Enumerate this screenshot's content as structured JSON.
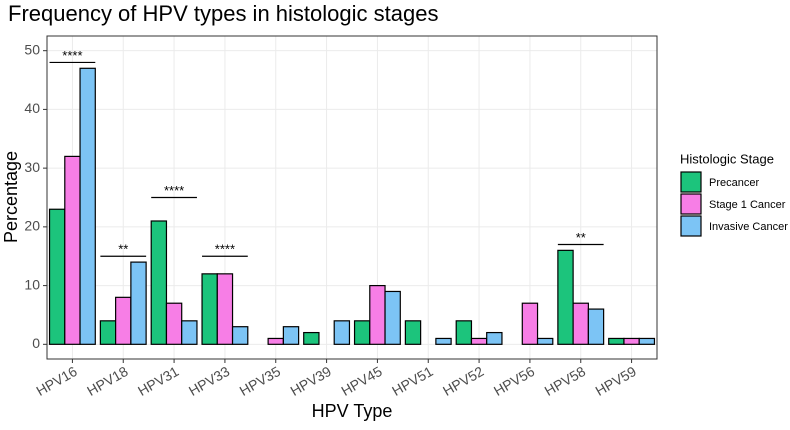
{
  "chart_data": {
    "type": "bar",
    "title": "Frequency of HPV types in histologic stages",
    "x_label": "HPV Type",
    "y_label": "Percentage",
    "categories": [
      "HPV16",
      "HPV18",
      "HPV31",
      "HPV33",
      "HPV35",
      "HPV39",
      "HPV45",
      "HPV51",
      "HPV52",
      "HPV56",
      "HPV58",
      "HPV59"
    ],
    "series": [
      {
        "name": "Precancer",
        "color": "#1cc47c",
        "values": [
          23,
          4,
          21,
          12,
          0,
          2,
          4,
          4,
          4,
          0,
          16,
          1
        ]
      },
      {
        "name": "Stage 1 Cancer",
        "color": "#f77ee6",
        "values": [
          32,
          8,
          7,
          12,
          1,
          0,
          10,
          0,
          1,
          7,
          7,
          1
        ]
      },
      {
        "name": "Invasive Cancer",
        "color": "#7cc4f5",
        "values": [
          47,
          14,
          4,
          3,
          3,
          4,
          9,
          1,
          2,
          1,
          6,
          1
        ]
      }
    ],
    "legend_title": "Histologic Stage",
    "legend_position": "right",
    "annotations": [
      {
        "category": "HPV16",
        "label": "****",
        "y": 48
      },
      {
        "category": "HPV18",
        "label": "**",
        "y": 15
      },
      {
        "category": "HPV31",
        "label": "****",
        "y": 25
      },
      {
        "category": "HPV33",
        "label": "****",
        "y": 15
      },
      {
        "category": "HPV58",
        "label": "**",
        "y": 17
      }
    ],
    "ylim": [
      -2.5,
      52.5
    ],
    "yticks": [
      0,
      10,
      20,
      30,
      40,
      50
    ],
    "grid": true
  }
}
